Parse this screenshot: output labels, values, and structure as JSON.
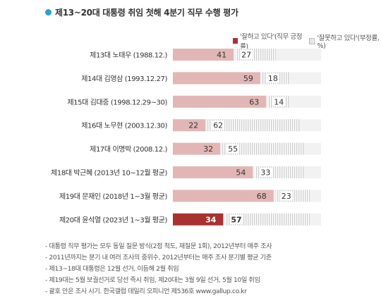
{
  "title": "제13~20대 대통령 취임 첫해 4분기 직무 수행 평가",
  "colors": {
    "accent_dot": "#2aa0d8",
    "positive": "#e3b6b6",
    "positive_highlight": "#a83232",
    "negative": "#d5d5d5"
  },
  "legend": {
    "positive": "'잘하고 있다'(직무 긍정률)",
    "negative": "'잘못하고 있다'(부정률, %)"
  },
  "chart_data": {
    "type": "bar",
    "orientation": "horizontal",
    "stacked": true,
    "categories": [
      "제13대 노태우 (1988.12.)",
      "제14대 김영삼 (1993.12.27)",
      "제15대 김대중 (1998.12.29~30)",
      "제16대 노무현 (2003.12.30)",
      "제17대 이명박 (2008.12.)",
      "제18대 박근혜 (2013년 10~12월 평균)",
      "제19대 문재인 (2018년 1~3월 평균)",
      "제20대 윤석열 (2023년 1~3월 평균)"
    ],
    "series": [
      {
        "name": "'잘하고 있다'(직무 긍정률)",
        "values": [
          41,
          59,
          63,
          22,
          32,
          54,
          68,
          34
        ]
      },
      {
        "name": "'잘못하고 있다'(부정률, %)",
        "values": [
          27,
          18,
          14,
          62,
          55,
          33,
          23,
          57
        ]
      }
    ],
    "highlight_index": 7,
    "xlim": [
      0,
      100
    ],
    "grid": false
  },
  "footnotes": [
    "- 대통령 직무 평가는 모두 동일 질문 방식(2점 척도, 재질문 1회), 2012년부터 매주 조사",
    "- 2011년까지는 분기 내 여러 조사의 중위수, 2012년부터는 매주 조사 분기별 평균 기준",
    "- 제13~18대 대통령은 12월 선거, 이듬해 2월 취임",
    "- 제19대는 5월 보궐선거로 당선 즉시 취임, 제20대는 3월 9일 선거, 5월 10일 취임",
    "- 괄호 안은 조사 시기. 한국갤럽 데일리 오피니언 제536호 www.gallup.co.kr"
  ]
}
